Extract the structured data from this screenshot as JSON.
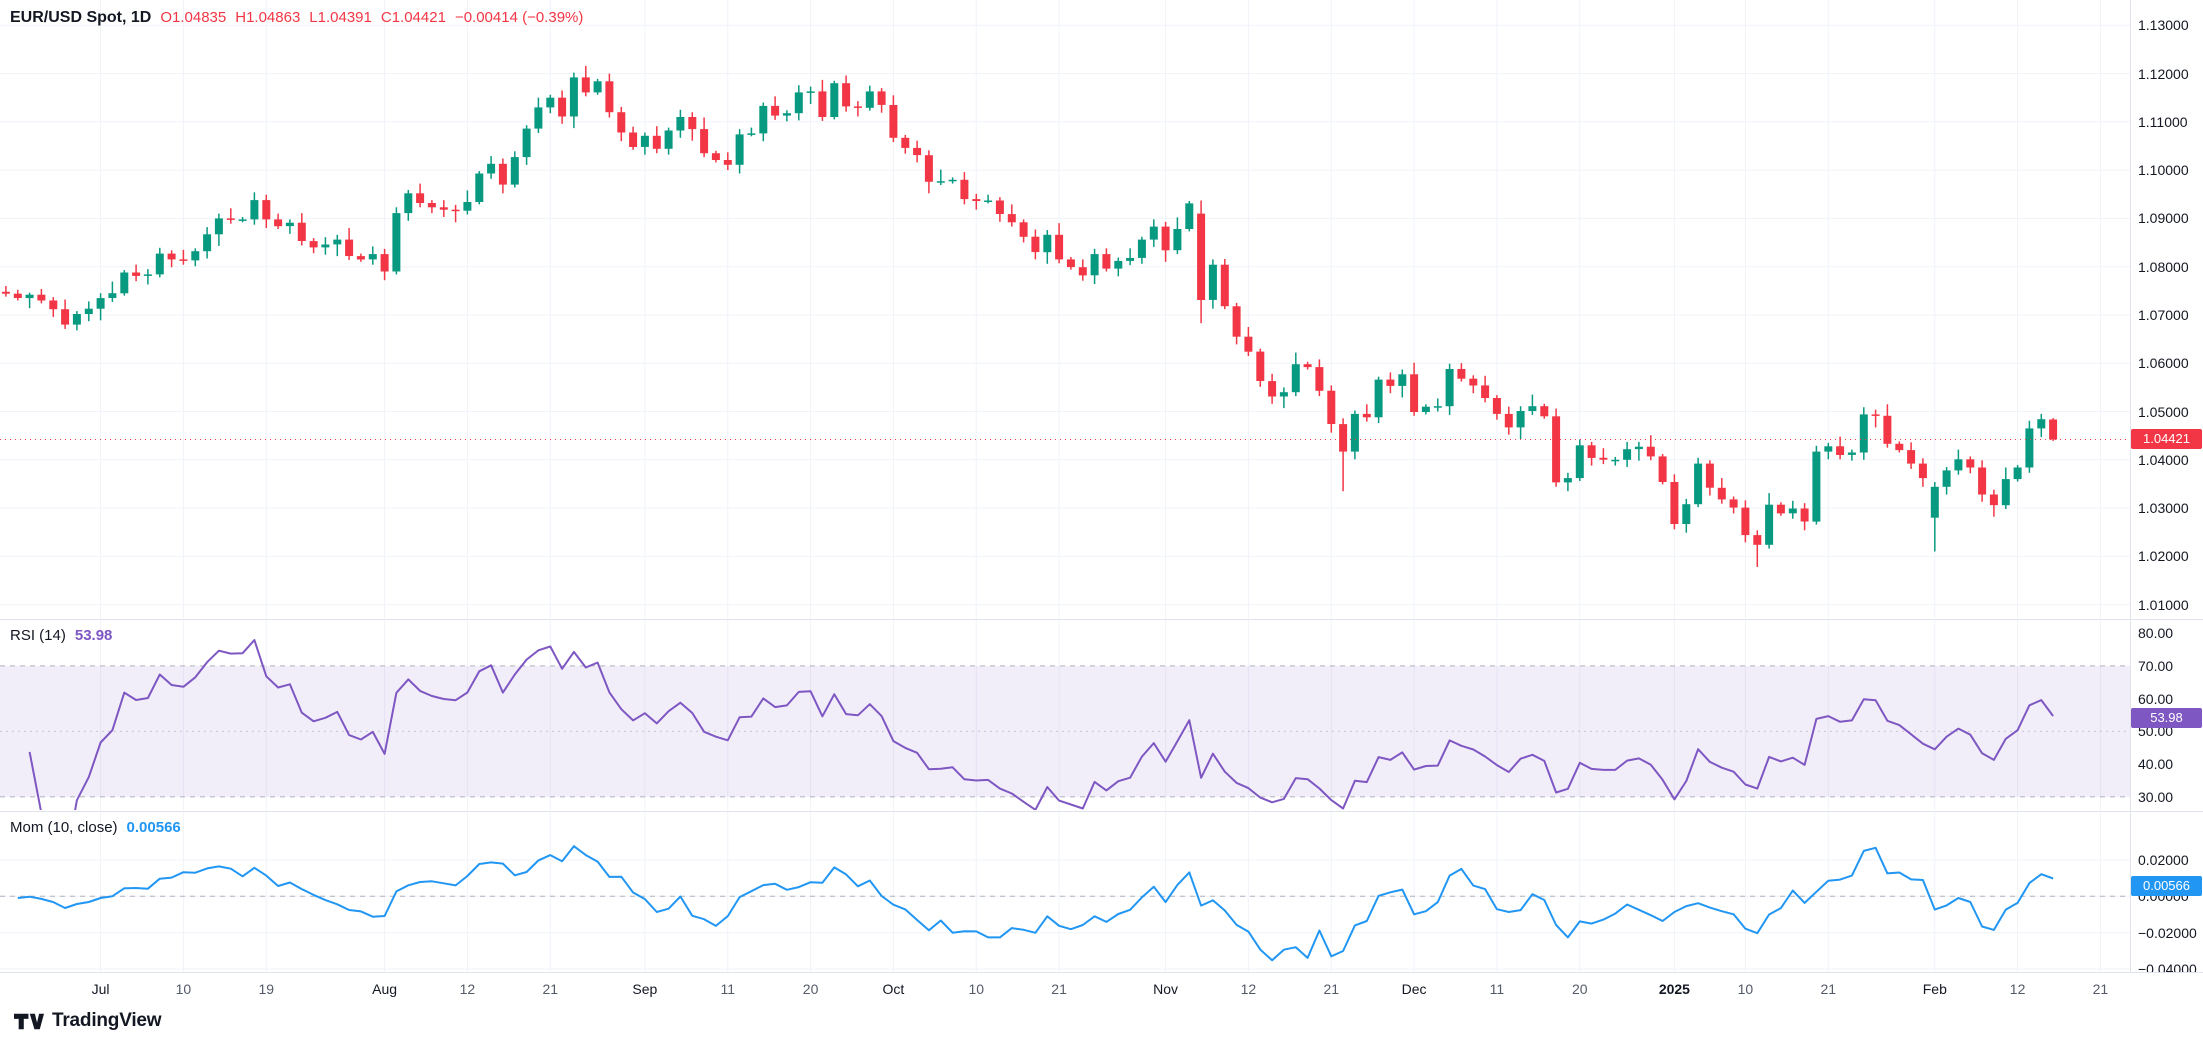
{
  "header": {
    "symbol_title": "EUR/USD Spot, 1D",
    "open": "O1.04835",
    "high": "H1.04863",
    "low": "L1.04391",
    "close": "C1.04421",
    "change": "−0.00414 (−0.39%)"
  },
  "rsi_legend": {
    "title": "RSI (14)",
    "value": "53.98"
  },
  "mom_legend": {
    "title": "Mom (10, close)",
    "value": "0.00566"
  },
  "badges": {
    "price": "1.04421",
    "rsi": "53.98",
    "mom": "0.00566"
  },
  "branding": {
    "name": "TradingView"
  },
  "colors": {
    "up": "#089981",
    "down": "#F23645",
    "rsi": "#7E57C2",
    "rsi_band": "rgba(126,87,194,0.10)",
    "band_edge": "#787B86",
    "mom": "#2196F3",
    "grid": "#F0F3FA",
    "axis_border": "#E0E3EB",
    "last_price": "#F23645"
  },
  "chart_data": {
    "type": "candlestick",
    "title": "EUR/USD Spot, 1D",
    "symbol": "EUR/USD Spot",
    "interval": "1D",
    "price_range": [
      1.01,
      1.13
    ],
    "price_ticks": [
      "1.13000",
      "1.12000",
      "1.11000",
      "1.10000",
      "1.09000",
      "1.08000",
      "1.07000",
      "1.06000",
      "1.05000",
      "1.04000",
      "1.03000",
      "1.02000",
      "1.01000"
    ],
    "last_close": 1.04421,
    "last_candle": {
      "o": 1.04835,
      "h": 1.04863,
      "l": 1.04391,
      "c": 1.04421,
      "change": -0.00414,
      "change_pct": -0.39
    },
    "time_ticks": [
      {
        "text": "Jul",
        "slot": 8,
        "kind": "month"
      },
      {
        "text": "10",
        "slot": 15,
        "kind": "day"
      },
      {
        "text": "19",
        "slot": 22,
        "kind": "day"
      },
      {
        "text": "Aug",
        "slot": 32,
        "kind": "month"
      },
      {
        "text": "12",
        "slot": 39,
        "kind": "day"
      },
      {
        "text": "21",
        "slot": 46,
        "kind": "day"
      },
      {
        "text": "Sep",
        "slot": 54,
        "kind": "month"
      },
      {
        "text": "11",
        "slot": 61,
        "kind": "day"
      },
      {
        "text": "20",
        "slot": 68,
        "kind": "day"
      },
      {
        "text": "Oct",
        "slot": 75,
        "kind": "month"
      },
      {
        "text": "10",
        "slot": 82,
        "kind": "day"
      },
      {
        "text": "21",
        "slot": 89,
        "kind": "day"
      },
      {
        "text": "Nov",
        "slot": 98,
        "kind": "month"
      },
      {
        "text": "12",
        "slot": 105,
        "kind": "day"
      },
      {
        "text": "21",
        "slot": 112,
        "kind": "day"
      },
      {
        "text": "Dec",
        "slot": 119,
        "kind": "month"
      },
      {
        "text": "11",
        "slot": 126,
        "kind": "day"
      },
      {
        "text": "20",
        "slot": 133,
        "kind": "day"
      },
      {
        "text": "2025",
        "slot": 141,
        "kind": "year"
      },
      {
        "text": "10",
        "slot": 147,
        "kind": "day"
      },
      {
        "text": "21",
        "slot": 154,
        "kind": "day"
      },
      {
        "text": "Feb",
        "slot": 163,
        "kind": "month"
      },
      {
        "text": "12",
        "slot": 170,
        "kind": "day"
      },
      {
        "text": "21",
        "slot": 177,
        "kind": "day"
      }
    ],
    "candles": [
      [
        1.0748,
        1.076,
        1.0738,
        1.0744
      ],
      [
        1.0744,
        1.0752,
        1.073,
        1.0735
      ],
      [
        1.0735,
        1.0746,
        1.0714,
        1.0742
      ],
      [
        1.0742,
        1.0754,
        1.0724,
        1.073
      ],
      [
        1.073,
        1.0737,
        1.0696,
        1.0712
      ],
      [
        1.0712,
        1.0732,
        1.0671,
        1.068
      ],
      [
        1.068,
        1.0708,
        1.0668,
        1.0702
      ],
      [
        1.0702,
        1.0728,
        1.0687,
        1.0713
      ],
      [
        1.0713,
        1.0745,
        1.0689,
        1.0735
      ],
      [
        1.0735,
        1.0769,
        1.0727,
        1.0745
      ],
      [
        1.0745,
        1.0793,
        1.074,
        1.0788
      ],
      [
        1.0788,
        1.0804,
        1.077,
        1.0781
      ],
      [
        1.0781,
        1.0795,
        1.0763,
        1.0784
      ],
      [
        1.0784,
        1.0839,
        1.0778,
        1.0827
      ],
      [
        1.0827,
        1.0834,
        1.0799,
        1.0815
      ],
      [
        1.0815,
        1.0835,
        1.0804,
        1.0813
      ],
      [
        1.0813,
        1.0838,
        1.0801,
        1.0832
      ],
      [
        1.0832,
        1.0882,
        1.0817,
        1.0867
      ],
      [
        1.0867,
        1.091,
        1.0843,
        1.09
      ],
      [
        1.09,
        1.0921,
        1.0889,
        1.0897
      ],
      [
        1.0897,
        1.0903,
        1.0892,
        1.0898
      ],
      [
        1.0898,
        1.0954,
        1.0887,
        1.0938
      ],
      [
        1.0938,
        1.0949,
        1.088,
        1.0898
      ],
      [
        1.0898,
        1.091,
        1.0878,
        1.0884
      ],
      [
        1.0884,
        1.0898,
        1.0868,
        1.0891
      ],
      [
        1.0891,
        1.0911,
        1.0844,
        1.0853
      ],
      [
        1.0853,
        1.0859,
        1.0828,
        1.084
      ],
      [
        1.084,
        1.0861,
        1.0825,
        1.0846
      ],
      [
        1.0846,
        1.0866,
        1.0822,
        1.0856
      ],
      [
        1.0856,
        1.088,
        1.0814,
        1.0822
      ],
      [
        1.0822,
        1.0827,
        1.081,
        1.0815
      ],
      [
        1.0815,
        1.0842,
        1.0804,
        1.0826
      ],
      [
        1.0826,
        1.0837,
        1.0772,
        1.079
      ],
      [
        1.079,
        1.0923,
        1.0784,
        1.0911
      ],
      [
        1.0911,
        1.0959,
        1.0895,
        1.0952
      ],
      [
        1.0952,
        1.0972,
        1.0923,
        1.0932
      ],
      [
        1.0932,
        1.0938,
        1.0911,
        1.0923
      ],
      [
        1.0923,
        1.0938,
        1.0903,
        1.0918
      ],
      [
        1.0918,
        1.0928,
        1.0892,
        1.0916
      ],
      [
        1.0916,
        1.0958,
        1.0908,
        1.0934
      ],
      [
        1.0934,
        1.0998,
        1.0929,
        1.0993
      ],
      [
        1.0993,
        1.1029,
        1.0982,
        1.1013
      ],
      [
        1.1013,
        1.1024,
        1.0952,
        1.097
      ],
      [
        1.097,
        1.1039,
        1.0964,
        1.1027
      ],
      [
        1.1027,
        1.1093,
        1.1011,
        1.1086
      ],
      [
        1.1086,
        1.115,
        1.1077,
        1.113
      ],
      [
        1.113,
        1.1156,
        1.1118,
        1.115
      ],
      [
        1.115,
        1.1165,
        1.1096,
        1.1111
      ],
      [
        1.1111,
        1.1202,
        1.1087,
        1.1192
      ],
      [
        1.1192,
        1.1216,
        1.1153,
        1.1161
      ],
      [
        1.1161,
        1.1189,
        1.1156,
        1.1184
      ],
      [
        1.1184,
        1.12,
        1.1109,
        1.112
      ],
      [
        1.112,
        1.1131,
        1.106,
        1.1078
      ],
      [
        1.1078,
        1.109,
        1.1042,
        1.1048
      ],
      [
        1.1048,
        1.1078,
        1.1032,
        1.1071
      ],
      [
        1.1071,
        1.1091,
        1.1035,
        1.1044
      ],
      [
        1.1044,
        1.1088,
        1.1032,
        1.1082
      ],
      [
        1.1082,
        1.1125,
        1.1067,
        1.111
      ],
      [
        1.111,
        1.112,
        1.1061,
        1.1085
      ],
      [
        1.1085,
        1.1109,
        1.1027,
        1.1035
      ],
      [
        1.1035,
        1.104,
        1.1016,
        1.1021
      ],
      [
        1.1021,
        1.1037,
        1.1,
        1.1011
      ],
      [
        1.1011,
        1.1085,
        1.0993,
        1.1074
      ],
      [
        1.1074,
        1.1088,
        1.107,
        1.1076
      ],
      [
        1.1076,
        1.114,
        1.106,
        1.1133
      ],
      [
        1.1133,
        1.1153,
        1.1104,
        1.1113
      ],
      [
        1.1113,
        1.1124,
        1.1101,
        1.1118
      ],
      [
        1.1118,
        1.1176,
        1.1103,
        1.1161
      ],
      [
        1.1161,
        1.1173,
        1.1137,
        1.1163
      ],
      [
        1.1163,
        1.1187,
        1.1102,
        1.111
      ],
      [
        1.111,
        1.1185,
        1.1105,
        1.118
      ],
      [
        1.118,
        1.1196,
        1.1121,
        1.1132
      ],
      [
        1.1132,
        1.1143,
        1.1111,
        1.1129
      ],
      [
        1.1129,
        1.1175,
        1.1123,
        1.1163
      ],
      [
        1.1163,
        1.117,
        1.1119,
        1.1135
      ],
      [
        1.1135,
        1.1155,
        1.1058,
        1.1067
      ],
      [
        1.1067,
        1.1073,
        1.1034,
        1.1046
      ],
      [
        1.1046,
        1.1061,
        1.1016,
        1.1031
      ],
      [
        1.1031,
        1.1041,
        1.0952,
        1.0976
      ],
      [
        1.0976,
        1.1001,
        1.0969,
        1.0977
      ],
      [
        1.0977,
        1.0985,
        1.0972,
        1.098
      ],
      [
        1.098,
        1.0996,
        1.0929,
        1.094
      ],
      [
        1.094,
        1.0951,
        1.0918,
        1.0936
      ],
      [
        1.0936,
        1.0949,
        1.0931,
        1.0937
      ],
      [
        1.0937,
        1.0944,
        1.0893,
        1.0909
      ],
      [
        1.0909,
        1.0929,
        1.0883,
        1.0892
      ],
      [
        1.0892,
        1.0898,
        1.085,
        1.0862
      ],
      [
        1.0862,
        1.0877,
        1.0815,
        1.083
      ],
      [
        1.083,
        1.0876,
        1.0806,
        1.0866
      ],
      [
        1.0866,
        1.089,
        1.0807,
        1.0815
      ],
      [
        1.0815,
        1.082,
        1.0794,
        1.0799
      ],
      [
        1.0799,
        1.0815,
        1.0771,
        1.0782
      ],
      [
        1.0782,
        1.0837,
        1.0764,
        1.0826
      ],
      [
        1.0826,
        1.0838,
        1.079,
        1.0796
      ],
      [
        1.0796,
        1.0819,
        1.078,
        1.0812
      ],
      [
        1.0812,
        1.0838,
        1.0803,
        1.0818
      ],
      [
        1.0818,
        1.0862,
        1.0806,
        1.0856
      ],
      [
        1.0856,
        1.0898,
        1.0841,
        1.0883
      ],
      [
        1.0883,
        1.0893,
        1.081,
        1.0834
      ],
      [
        1.0834,
        1.0902,
        1.0826,
        1.0878
      ],
      [
        1.0878,
        1.0936,
        1.0873,
        1.0931
      ],
      [
        1.091,
        1.0937,
        1.0683,
        1.0731
      ],
      [
        1.0731,
        1.0815,
        1.0713,
        1.0804
      ],
      [
        1.0804,
        1.0816,
        1.0712,
        1.0718
      ],
      [
        1.0718,
        1.0725,
        1.0639,
        1.0655
      ],
      [
        1.0655,
        1.0675,
        1.0615,
        1.0624
      ],
      [
        1.0624,
        1.063,
        1.0551,
        1.0563
      ],
      [
        1.0563,
        1.0578,
        1.0516,
        1.0531
      ],
      [
        1.0531,
        1.055,
        1.0507,
        1.054
      ],
      [
        1.054,
        1.0622,
        1.0532,
        1.0598
      ],
      [
        1.0598,
        1.0603,
        1.0587,
        1.0592
      ],
      [
        1.0592,
        1.0608,
        1.0532,
        1.0543
      ],
      [
        1.0543,
        1.0554,
        1.0456,
        1.0474
      ],
      [
        1.0474,
        1.0486,
        1.0335,
        1.0417
      ],
      [
        1.0417,
        1.0502,
        1.0401,
        1.0495
      ],
      [
        1.0495,
        1.0515,
        1.0479,
        1.0488
      ],
      [
        1.0488,
        1.0572,
        1.0476,
        1.0566
      ],
      [
        1.0566,
        1.0581,
        1.0538,
        1.0553
      ],
      [
        1.0553,
        1.0587,
        1.0529,
        1.0577
      ],
      [
        1.0577,
        1.0601,
        1.0491,
        1.0499
      ],
      [
        1.0499,
        1.0515,
        1.0494,
        1.051
      ],
      [
        1.051,
        1.0527,
        1.05,
        1.0511
      ],
      [
        1.0511,
        1.0599,
        1.0493,
        1.0588
      ],
      [
        1.0588,
        1.06,
        1.0562,
        1.0568
      ],
      [
        1.0568,
        1.0575,
        1.0538,
        1.0554
      ],
      [
        1.0554,
        1.0574,
        1.0519,
        1.0528
      ],
      [
        1.0528,
        1.0534,
        1.0483,
        1.0495
      ],
      [
        1.0495,
        1.051,
        1.0452,
        1.0467
      ],
      [
        1.0467,
        1.0511,
        1.0443,
        1.0501
      ],
      [
        1.0501,
        1.0535,
        1.0493,
        1.0511
      ],
      [
        1.0511,
        1.0516,
        1.0485,
        1.049
      ],
      [
        1.049,
        1.0506,
        1.0344,
        1.0353
      ],
      [
        1.0353,
        1.0373,
        1.0335,
        1.0362
      ],
      [
        1.0362,
        1.0442,
        1.0356,
        1.043
      ],
      [
        1.043,
        1.0437,
        1.0388,
        1.0404
      ],
      [
        1.0404,
        1.0424,
        1.0391,
        1.04
      ],
      [
        1.04,
        1.0406,
        1.0388,
        1.04
      ],
      [
        1.04,
        1.0437,
        1.0385,
        1.0422
      ],
      [
        1.0422,
        1.0437,
        1.0398,
        1.0427
      ],
      [
        1.0427,
        1.0451,
        1.0399,
        1.0407
      ],
      [
        1.0407,
        1.0412,
        1.0349,
        1.0354
      ],
      [
        1.0354,
        1.037,
        1.0256,
        1.0267
      ],
      [
        1.0267,
        1.0319,
        1.0249,
        1.0308
      ],
      [
        1.0308,
        1.0404,
        1.0302,
        1.0392
      ],
      [
        1.0392,
        1.0399,
        1.0326,
        1.0342
      ],
      [
        1.0342,
        1.0362,
        1.0309,
        1.0318
      ],
      [
        1.0318,
        1.0324,
        1.0289,
        1.0301
      ],
      [
        1.0301,
        1.0316,
        1.0229,
        1.0244
      ],
      [
        1.0244,
        1.0254,
        1.0178,
        1.0224
      ],
      [
        1.0224,
        1.0331,
        1.0216,
        1.0307
      ],
      [
        1.0307,
        1.0312,
        1.0284,
        1.0289
      ],
      [
        1.0289,
        1.0315,
        1.0278,
        1.0299
      ],
      [
        1.0299,
        1.031,
        1.0254,
        1.0272
      ],
      [
        1.0272,
        1.0429,
        1.0266,
        1.0417
      ],
      [
        1.0417,
        1.0435,
        1.0401,
        1.0428
      ],
      [
        1.0428,
        1.0448,
        1.0401,
        1.041
      ],
      [
        1.041,
        1.0421,
        1.0398,
        1.0415
      ],
      [
        1.0415,
        1.0509,
        1.04,
        1.0494
      ],
      [
        1.0494,
        1.0504,
        1.0467,
        1.0491
      ],
      [
        1.0491,
        1.0515,
        1.0425,
        1.0433
      ],
      [
        1.0433,
        1.0438,
        1.0415,
        1.042
      ],
      [
        1.042,
        1.0436,
        1.0381,
        1.0392
      ],
      [
        1.0392,
        1.0403,
        1.0344,
        1.0362
      ],
      [
        1.028,
        1.0354,
        1.021,
        1.0344
      ],
      [
        1.0344,
        1.0385,
        1.0328,
        1.0378
      ],
      [
        1.0378,
        1.0421,
        1.0369,
        1.0401
      ],
      [
        1.0401,
        1.0407,
        1.0372,
        1.0384
      ],
      [
        1.0384,
        1.0399,
        1.0313,
        1.0328
      ],
      [
        1.0328,
        1.0338,
        1.0282,
        1.0306
      ],
      [
        1.0306,
        1.0384,
        1.0298,
        1.036
      ],
      [
        1.036,
        1.0389,
        1.0355,
        1.0384
      ],
      [
        1.0384,
        1.0481,
        1.0373,
        1.0465
      ],
      [
        1.0465,
        1.0495,
        1.0447,
        1.0484
      ],
      [
        1.04835,
        1.04863,
        1.04391,
        1.04421
      ]
    ],
    "indicators": [
      {
        "name": "RSI",
        "type": "rsi",
        "period": 14,
        "value": 53.98,
        "color": "#7E57C2",
        "ticks": [
          "80.00",
          "70.00",
          "60.00",
          "50.00",
          "40.00",
          "30.00"
        ],
        "band": [
          30,
          70
        ]
      },
      {
        "name": "Momentum",
        "type": "momentum",
        "period": 10,
        "source": "close",
        "value": 0.00566,
        "color": "#2196F3",
        "ticks": [
          "0.02000",
          "0.00000",
          "−0.02000",
          "−0.04000"
        ],
        "zero_line": 0
      }
    ]
  }
}
